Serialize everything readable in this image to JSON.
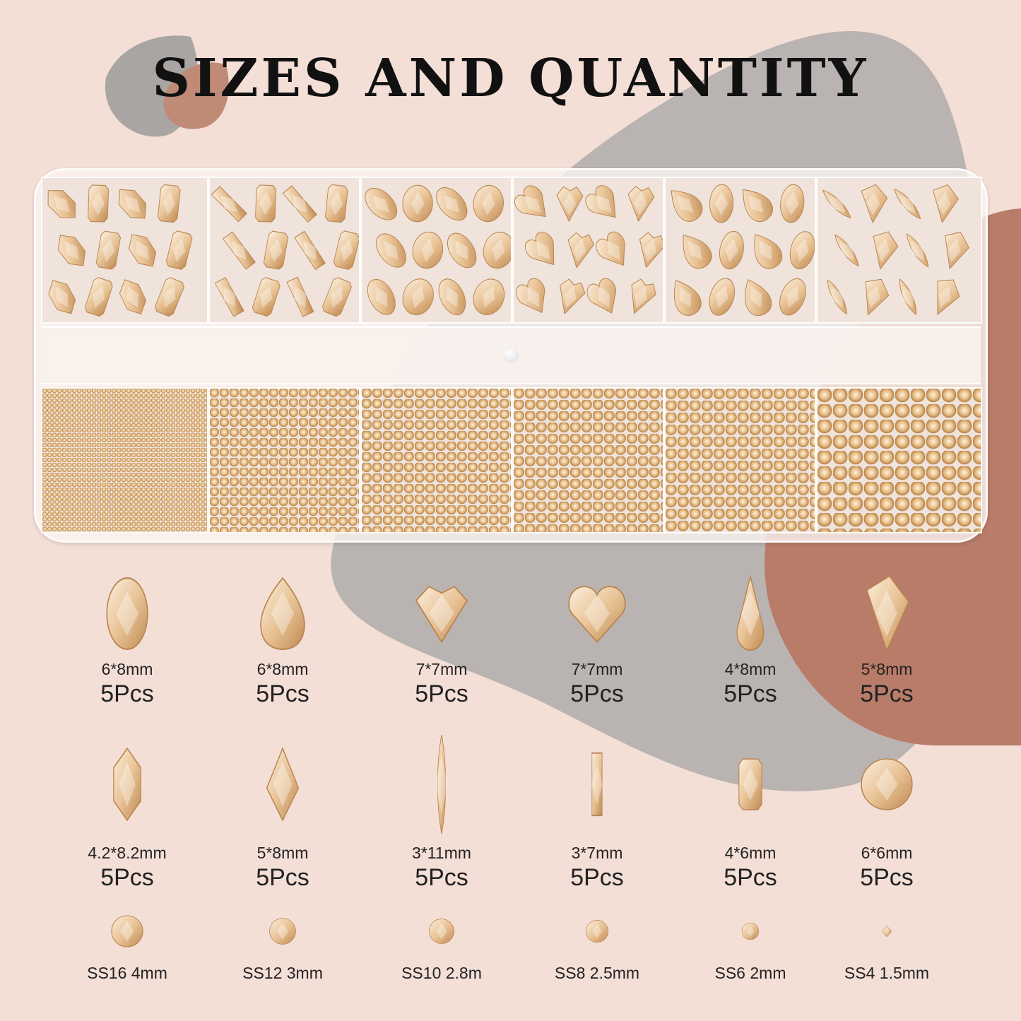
{
  "title": "SIZES AND QUANTITY",
  "colors": {
    "background": "#f4dfd7",
    "gray_blob": "#b9b4b1",
    "brown_blob": "#b97c69",
    "gem_light": "#f8e6cf",
    "gem_dark": "#c8955c"
  },
  "row1": [
    {
      "shape": "oval-gem-icon",
      "size": "6*8mm",
      "qty": "5Pcs"
    },
    {
      "shape": "teardrop-gem-icon",
      "size": "6*8mm",
      "qty": "5Pcs"
    },
    {
      "shape": "trillion-heart-gem-icon",
      "size": "7*7mm",
      "qty": "5Pcs"
    },
    {
      "shape": "heart-gem-icon",
      "size": "7*7mm",
      "qty": "5Pcs"
    },
    {
      "shape": "drop-gem-icon",
      "size": "4*8mm",
      "qty": "5Pcs"
    },
    {
      "shape": "kite-gem-icon",
      "size": "5*8mm",
      "qty": "5Pcs"
    }
  ],
  "row2": [
    {
      "shape": "hexagon-gem-icon",
      "size": "4.2*8.2mm",
      "qty": "5Pcs"
    },
    {
      "shape": "rhombus-gem-icon",
      "size": "5*8mm",
      "qty": "5Pcs"
    },
    {
      "shape": "marquise-gem-icon",
      "size": "3*11mm",
      "qty": "5Pcs"
    },
    {
      "shape": "baguette-gem-icon",
      "size": "3*7mm",
      "qty": "5Pcs"
    },
    {
      "shape": "octagon-gem-icon",
      "size": "4*6mm",
      "qty": "5Pcs"
    },
    {
      "shape": "round-gem-icon",
      "size": "6*6mm",
      "qty": "5Pcs"
    }
  ],
  "row3": [
    {
      "shape": "round-rhinestone-icon",
      "label": "SS16 4mm"
    },
    {
      "shape": "round-rhinestone-icon",
      "label": "SS12 3mm"
    },
    {
      "shape": "round-rhinestone-icon",
      "label": "SS10 2.8m"
    },
    {
      "shape": "round-rhinestone-icon",
      "label": "SS8 2.5mm"
    },
    {
      "shape": "round-rhinestone-icon",
      "label": "SS6 2mm"
    },
    {
      "shape": "pointed-back-rhinestone-icon",
      "label": "SS4 1.5mm"
    }
  ]
}
